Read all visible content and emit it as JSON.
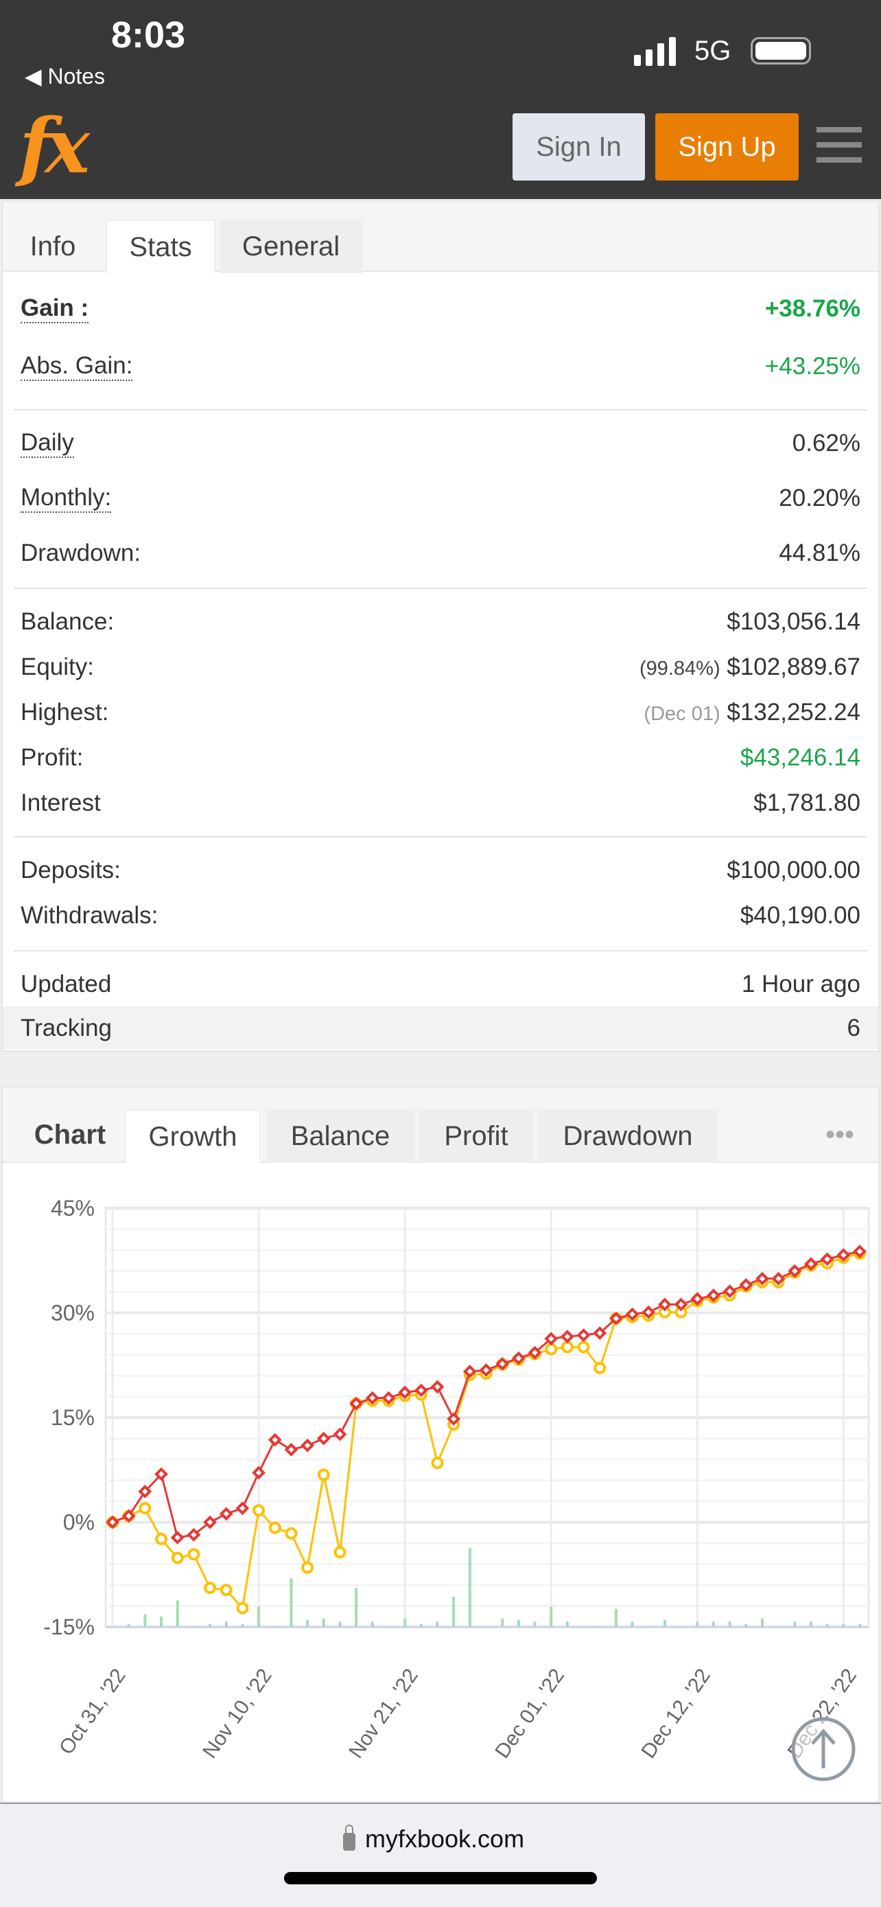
{
  "status_bar": {
    "time": "8:03",
    "back_label": "Notes",
    "network": "5G"
  },
  "header": {
    "logo": "fx",
    "sign_in": "Sign In",
    "sign_up": "Sign Up",
    "menu_icon": "hamburger-icon"
  },
  "stats_panel": {
    "tabs": [
      {
        "label": "Info"
      },
      {
        "label": "Stats"
      },
      {
        "label": "General"
      }
    ],
    "active_tab": "Stats",
    "gain": {
      "label": "Gain :",
      "value": "+38.76%"
    },
    "abs_gain": {
      "label": "Abs. Gain:",
      "value": "+43.25%"
    },
    "daily": {
      "label": "Daily",
      "value": "0.62%"
    },
    "monthly": {
      "label": "Monthly:",
      "value": "20.20%"
    },
    "drawdown": {
      "label": "Drawdown:",
      "value": "44.81%"
    },
    "balance": {
      "label": "Balance:",
      "value": "$103,056.14"
    },
    "equity": {
      "label": "Equity:",
      "note": "(99.84%)",
      "value": "$102,889.67"
    },
    "highest": {
      "label": "Highest:",
      "note": "(Dec 01)",
      "value": "$132,252.24"
    },
    "profit": {
      "label": "Profit:",
      "value": "$43,246.14"
    },
    "interest": {
      "label": "Interest",
      "value": "$1,781.80"
    },
    "deposits": {
      "label": "Deposits:",
      "value": "$100,000.00"
    },
    "withdrawals": {
      "label": "Withdrawals:",
      "value": "$40,190.00"
    },
    "updated": {
      "label": "Updated",
      "value": "1 Hour ago"
    },
    "tracking": {
      "label": "Tracking",
      "value": "6"
    },
    "colors": {
      "positive": "#1aa64a"
    }
  },
  "chart_panel": {
    "title": "Chart",
    "tabs": [
      {
        "label": "Growth"
      },
      {
        "label": "Balance"
      },
      {
        "label": "Profit"
      },
      {
        "label": "Drawdown"
      }
    ],
    "active_tab": "Growth",
    "more_icon": "ellipsis-icon"
  },
  "chart_data": {
    "type": "line",
    "ylim": [
      -15,
      45
    ],
    "yticks": [
      "45%",
      "30%",
      "15%",
      "0%",
      "-15%"
    ],
    "ytick_values": [
      45,
      30,
      15,
      0,
      -15
    ],
    "xtick_labels": [
      "Oct 31, '22",
      "Nov 10, '22",
      "Nov 21, '22",
      "Dec 01, '22",
      "Dec 12, '22",
      "Dec 22, '22"
    ],
    "xtick_index": [
      0,
      9,
      18,
      27,
      36,
      45
    ],
    "grid": true,
    "series": [
      {
        "color": "#e53935",
        "marker": "diamond",
        "values": [
          0,
          0.9,
          4.4,
          6.9,
          -2.2,
          -1.8,
          0,
          1.2,
          2,
          7.1,
          11.8,
          10.4,
          11,
          12,
          12.6,
          17,
          17.8,
          17.8,
          18.6,
          18.9,
          19.4,
          14.8,
          21.6,
          21.8,
          22.7,
          23.5,
          24.3,
          26.3,
          26.6,
          26.8,
          27.1,
          29.2,
          29.8,
          30.1,
          31.2,
          31.2,
          32,
          32.5,
          33.1,
          34,
          34.9,
          34.9,
          36,
          37,
          37.7,
          38.3,
          38.8
        ]
      },
      {
        "color": "#ffc000",
        "marker": "circle",
        "values": [
          0,
          0.9,
          2,
          -2.4,
          -5.1,
          -4.6,
          -9.4,
          -9.7,
          -12.3,
          1.7,
          -0.8,
          -1.6,
          -6.5,
          6.8,
          -4.3,
          17,
          17.4,
          17.4,
          18.1,
          18.3,
          8.5,
          14,
          21.1,
          21.3,
          22.6,
          23.3,
          24.1,
          24.8,
          25.1,
          25.1,
          22.1,
          29.2,
          29.4,
          29.6,
          30.1,
          30.1,
          31.7,
          32.2,
          32.5,
          33.8,
          34.4,
          34.4,
          35.8,
          36.8,
          37.1,
          37.9,
          38.5
        ]
      }
    ],
    "bars": {
      "color": "#a8dbb0",
      "values": [
        0,
        0.4,
        1.8,
        1.5,
        3.8,
        0.1,
        0.4,
        0.75,
        0.4,
        2.9,
        0.1,
        7,
        1,
        1.2,
        0.75,
        5.6,
        0.75,
        0,
        1.2,
        0.4,
        0.75,
        4.3,
        11.3,
        0,
        1.2,
        1,
        0.75,
        2.9,
        0.75,
        0,
        0.1,
        2.6,
        0.75,
        0.1,
        1,
        0,
        0.75,
        0.75,
        0.75,
        0.4,
        1.2,
        0,
        0.75,
        0.75,
        0.4,
        0.4,
        0.4
      ]
    }
  },
  "footer": {
    "url": "myfxbook.com",
    "scroll_top_icon": "arrow-up-circle-icon"
  }
}
